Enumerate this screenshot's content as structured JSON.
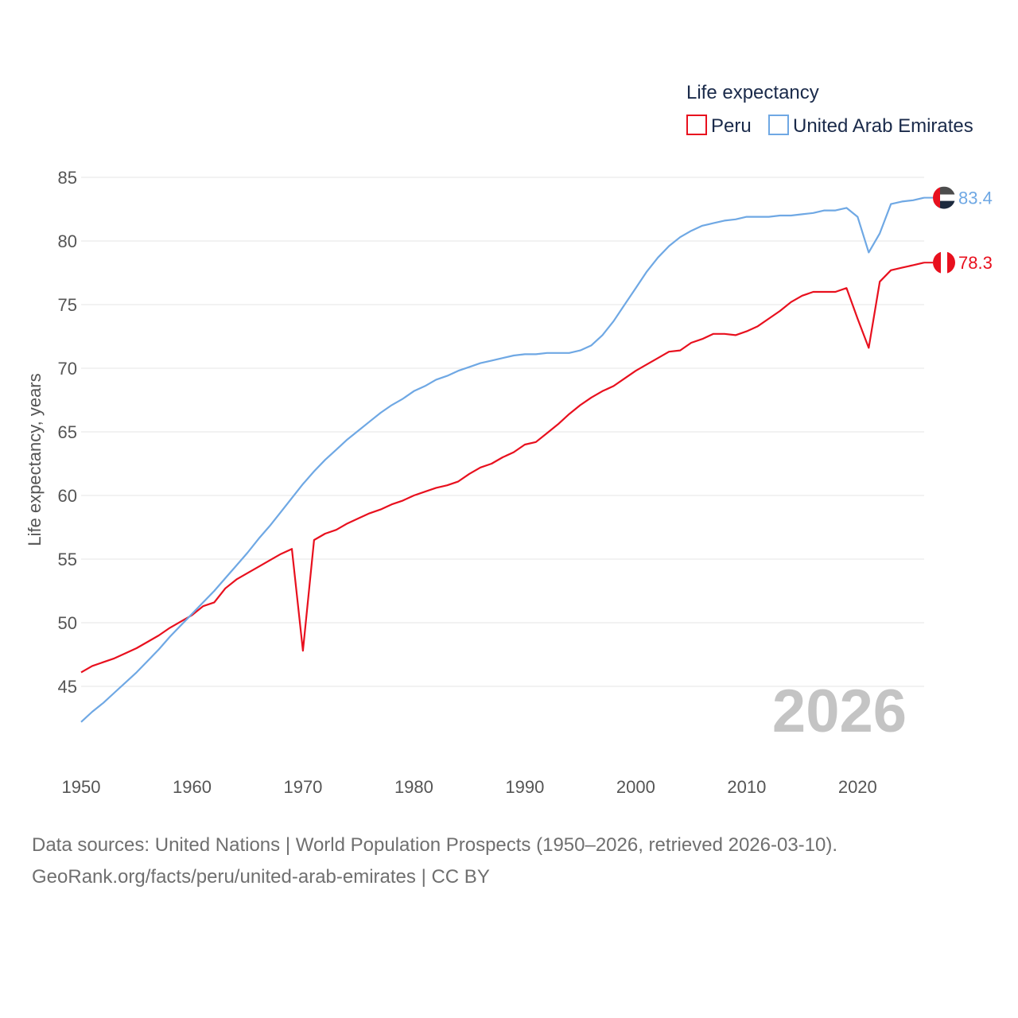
{
  "footer": {
    "line1": "Data sources: United Nations | World Population Prospects (1950–2026, retrieved 2026-03-10).",
    "line2": "GeoRank.org/facts/peru/united-arab-emirates | CC BY"
  },
  "chart_data": {
    "type": "line",
    "title": "Life expectancy",
    "xlabel": "",
    "ylabel": "Life expectancy, years",
    "ylim": [
      41,
      86
    ],
    "xlim": [
      1950,
      2026
    ],
    "y_ticks": [
      45,
      50,
      55,
      60,
      65,
      70,
      75,
      80,
      85
    ],
    "x_ticks": [
      1950,
      1960,
      1970,
      1980,
      1990,
      2000,
      2010,
      2020
    ],
    "grid": true,
    "legend_position": "top-right",
    "watermark_year": "2026",
    "series": [
      {
        "name": "Peru",
        "color": "#e8101e",
        "end_label": "78.3",
        "flag_icon": "peru-flag-icon",
        "x": [
          1950,
          1951,
          1952,
          1953,
          1954,
          1955,
          1956,
          1957,
          1958,
          1959,
          1960,
          1961,
          1962,
          1963,
          1964,
          1965,
          1966,
          1967,
          1968,
          1969,
          1970,
          1971,
          1972,
          1973,
          1974,
          1975,
          1976,
          1977,
          1978,
          1979,
          1980,
          1981,
          1982,
          1983,
          1984,
          1985,
          1986,
          1987,
          1988,
          1989,
          1990,
          1991,
          1992,
          1993,
          1994,
          1995,
          1996,
          1997,
          1998,
          1999,
          2000,
          2001,
          2002,
          2003,
          2004,
          2005,
          2006,
          2007,
          2008,
          2009,
          2010,
          2011,
          2012,
          2013,
          2014,
          2015,
          2016,
          2017,
          2018,
          2019,
          2020,
          2021,
          2022,
          2023,
          2024,
          2025,
          2026
        ],
        "values": [
          46.1,
          46.6,
          46.9,
          47.2,
          47.6,
          48.0,
          48.5,
          49.0,
          49.6,
          50.1,
          50.6,
          51.3,
          51.6,
          52.7,
          53.4,
          53.9,
          54.4,
          54.9,
          55.4,
          55.8,
          47.8,
          56.5,
          57.0,
          57.3,
          57.8,
          58.2,
          58.6,
          58.9,
          59.3,
          59.6,
          60.0,
          60.3,
          60.6,
          60.8,
          61.1,
          61.7,
          62.2,
          62.5,
          63.0,
          63.4,
          64.0,
          64.2,
          64.9,
          65.6,
          66.4,
          67.1,
          67.7,
          68.2,
          68.6,
          69.2,
          69.8,
          70.3,
          70.8,
          71.3,
          71.4,
          72.0,
          72.3,
          72.7,
          72.7,
          72.6,
          72.9,
          73.3,
          73.9,
          74.5,
          75.2,
          75.7,
          76.0,
          76.0,
          76.0,
          76.3,
          73.9,
          71.6,
          76.8,
          77.7,
          77.9,
          78.1,
          78.3
        ]
      },
      {
        "name": "United Arab Emirates",
        "color": "#6fa8e4",
        "end_label": "83.4",
        "flag_icon": "uae-flag-icon",
        "x": [
          1950,
          1951,
          1952,
          1953,
          1954,
          1955,
          1956,
          1957,
          1958,
          1959,
          1960,
          1961,
          1962,
          1963,
          1964,
          1965,
          1966,
          1967,
          1968,
          1969,
          1970,
          1971,
          1972,
          1973,
          1974,
          1975,
          1976,
          1977,
          1978,
          1979,
          1980,
          1981,
          1982,
          1983,
          1984,
          1985,
          1986,
          1987,
          1988,
          1989,
          1990,
          1991,
          1992,
          1993,
          1994,
          1995,
          1996,
          1997,
          1998,
          1999,
          2000,
          2001,
          2002,
          2003,
          2004,
          2005,
          2006,
          2007,
          2008,
          2009,
          2010,
          2011,
          2012,
          2013,
          2014,
          2015,
          2016,
          2017,
          2018,
          2019,
          2020,
          2021,
          2022,
          2023,
          2024,
          2025,
          2026
        ],
        "values": [
          42.2,
          43.0,
          43.7,
          44.5,
          45.3,
          46.1,
          47.0,
          47.9,
          48.9,
          49.8,
          50.7,
          51.6,
          52.5,
          53.5,
          54.5,
          55.5,
          56.6,
          57.6,
          58.7,
          59.8,
          60.9,
          61.9,
          62.8,
          63.6,
          64.4,
          65.1,
          65.8,
          66.5,
          67.1,
          67.6,
          68.2,
          68.6,
          69.1,
          69.4,
          69.8,
          70.1,
          70.4,
          70.6,
          70.8,
          71.0,
          71.1,
          71.1,
          71.2,
          71.2,
          71.2,
          71.4,
          71.8,
          72.6,
          73.7,
          75.0,
          76.3,
          77.6,
          78.7,
          79.6,
          80.3,
          80.8,
          81.2,
          81.4,
          81.6,
          81.7,
          81.9,
          81.9,
          81.9,
          82.0,
          82.0,
          82.1,
          82.2,
          82.4,
          82.4,
          82.6,
          81.9,
          79.1,
          80.6,
          82.9,
          83.1,
          83.2,
          83.4
        ]
      }
    ]
  }
}
